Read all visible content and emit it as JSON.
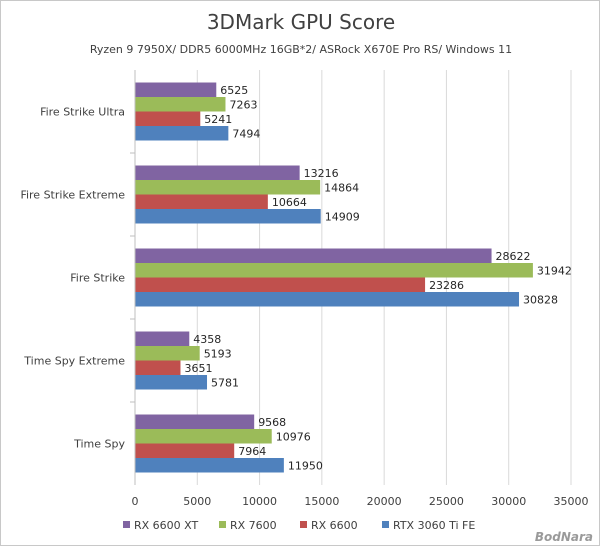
{
  "chart_data": {
    "type": "bar",
    "orientation": "horizontal",
    "title": "3DMark GPU Score",
    "subtitle": "Ryzen 9 7950X/ DDR5 6000MHz 16GB*2/ ASRock X670E Pro RS/ Windows 11",
    "categories": [
      "Fire Strike Ultra",
      "Fire Strike Extreme",
      "Fire Strike",
      "Time Spy Extreme",
      "Time Spy"
    ],
    "series": [
      {
        "name": "RX 6600 XT",
        "color": "#8064a2",
        "values": [
          6525,
          13216,
          28622,
          4358,
          9568
        ]
      },
      {
        "name": "RX 7600",
        "color": "#9bbb59",
        "values": [
          7263,
          14864,
          31942,
          5193,
          10976
        ]
      },
      {
        "name": "RX 6600",
        "color": "#c0504d",
        "values": [
          5241,
          10664,
          23286,
          3651,
          7964
        ]
      },
      {
        "name": "RTX 3060 Ti FE",
        "color": "#4f81bd",
        "values": [
          7494,
          14909,
          30828,
          5781,
          11950
        ]
      }
    ],
    "xlim": [
      0,
      35000
    ],
    "xticks": [
      0,
      5000,
      10000,
      15000,
      20000,
      25000,
      30000,
      35000
    ],
    "xlabel": "",
    "ylabel": "",
    "grid": "vertical",
    "legend_position": "bottom"
  },
  "watermark": "BodNara"
}
